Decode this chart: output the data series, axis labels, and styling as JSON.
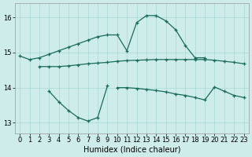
{
  "xlabel": "Humidex (Indice chaleur)",
  "background_color": "#cdecea",
  "line_color": "#1a6b5a",
  "grid_color": "#aad8d5",
  "xlim": [
    -0.5,
    23.5
  ],
  "ylim": [
    12.7,
    16.4
  ],
  "yticks": [
    13,
    14,
    15,
    16
  ],
  "xticks": [
    0,
    1,
    2,
    3,
    4,
    5,
    6,
    7,
    8,
    9,
    10,
    11,
    12,
    13,
    14,
    15,
    16,
    17,
    18,
    19,
    20,
    21,
    22,
    23
  ],
  "series1_x": [
    0,
    1,
    2,
    3,
    4,
    5,
    6,
    7,
    8,
    9,
    10,
    11,
    12,
    13,
    14,
    15,
    16,
    17,
    18,
    19
  ],
  "series1_y": [
    14.9,
    14.8,
    14.85,
    14.95,
    15.05,
    15.15,
    15.25,
    15.35,
    15.45,
    15.5,
    15.5,
    15.05,
    15.85,
    16.05,
    16.05,
    15.9,
    15.65,
    15.2,
    14.85,
    14.85
  ],
  "series2_x": [
    2,
    3,
    4,
    5,
    6,
    7,
    8,
    9,
    10,
    11,
    12,
    13,
    14,
    15,
    16,
    17,
    18,
    19,
    20,
    21,
    22,
    23
  ],
  "series2_y": [
    14.6,
    14.6,
    14.6,
    14.62,
    14.65,
    14.68,
    14.7,
    14.72,
    14.75,
    14.77,
    14.78,
    14.79,
    14.8,
    14.8,
    14.8,
    14.8,
    14.8,
    14.8,
    14.78,
    14.75,
    14.72,
    14.68
  ],
  "series3_x": [
    10,
    11,
    12,
    13,
    14,
    15,
    16,
    17,
    18,
    19,
    20,
    21,
    22,
    23
  ],
  "series3_y": [
    14.0,
    14.0,
    13.98,
    13.95,
    13.92,
    13.88,
    13.82,
    13.78,
    13.72,
    13.65,
    14.02,
    13.9,
    13.78,
    13.72
  ],
  "series4_x": [
    3,
    4,
    5,
    6,
    7,
    8,
    9
  ],
  "series4_y": [
    13.9,
    13.6,
    13.35,
    13.15,
    13.05,
    13.15,
    14.05
  ]
}
